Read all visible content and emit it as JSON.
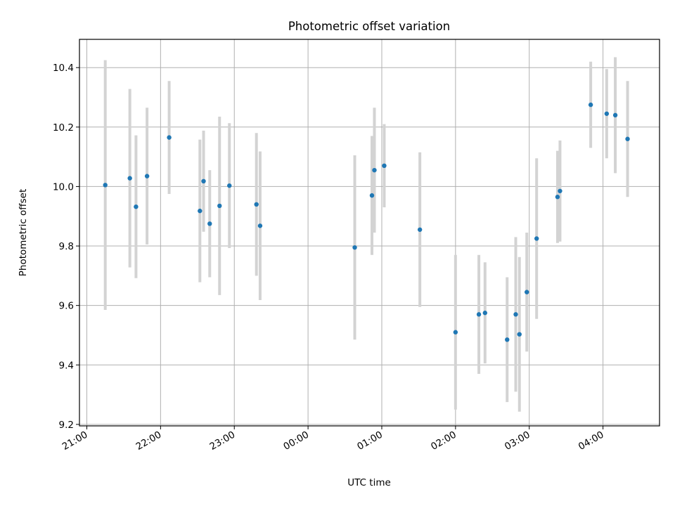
{
  "chart_data": {
    "type": "scatter",
    "title": "Photometric offset variation",
    "xlabel": "UTC time",
    "ylabel": "Photometric offset",
    "x_ticks": [
      "21:00",
      "22:00",
      "23:00",
      "00:00",
      "01:00",
      "02:00",
      "03:00",
      "04:00"
    ],
    "y_ticks": [
      "9.2",
      "9.4",
      "9.6",
      "9.8",
      "10.0",
      "10.2",
      "10.4"
    ],
    "xlim": [
      "20:54",
      "04:46"
    ],
    "ylim": [
      9.195,
      10.495
    ],
    "grid": true,
    "colors": {
      "point": "#1f77b4",
      "errorbar": "#d3d3d3",
      "grid": "#b0b0b0"
    },
    "series": [
      {
        "x": [
          "21:15",
          "21:35",
          "21:40",
          "21:49",
          "22:07",
          "22:32",
          "22:35",
          "22:40",
          "22:48",
          "22:56",
          "23:18",
          "23:21",
          "00:38",
          "00:52",
          "00:54",
          "01:02",
          "01:31",
          "02:00",
          "02:19",
          "02:24",
          "02:42",
          "02:49",
          "02:52",
          "02:58",
          "03:06",
          "03:23",
          "03:25",
          "03:50",
          "04:03",
          "04:10",
          "04:20"
        ],
        "y": [
          10.005,
          10.028,
          9.932,
          10.035,
          10.165,
          9.918,
          10.018,
          9.875,
          9.935,
          10.003,
          9.94,
          9.868,
          9.795,
          9.97,
          10.055,
          10.07,
          9.855,
          9.51,
          9.57,
          9.575,
          9.485,
          9.57,
          9.503,
          9.645,
          9.825,
          9.965,
          9.985,
          10.275,
          10.245,
          10.24,
          10.16
        ],
        "yerr": [
          0.42,
          0.3,
          0.24,
          0.23,
          0.19,
          0.24,
          0.17,
          0.18,
          0.3,
          0.21,
          0.24,
          0.25,
          0.31,
          0.2,
          0.21,
          0.14,
          0.26,
          0.26,
          0.2,
          0.17,
          0.21,
          0.26,
          0.26,
          0.2,
          0.27,
          0.155,
          0.17,
          0.145,
          0.15,
          0.195,
          0.195
        ]
      }
    ]
  }
}
